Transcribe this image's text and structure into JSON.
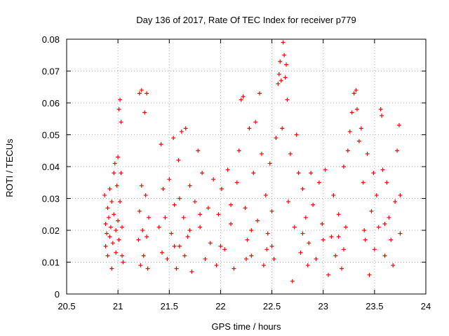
{
  "chart_data": {
    "type": "scatter",
    "title": "Day 136 of 2017, Rate Of TEC Index for receiver p779",
    "xlabel": "GPS time / hours",
    "ylabel": "ROTI / TECUs",
    "xlim": [
      20.5,
      24
    ],
    "ylim": [
      0,
      0.08
    ],
    "xticks": [
      "20.5",
      "21",
      "21.5",
      "22",
      "22.5",
      "23",
      "23.5",
      "24"
    ],
    "yticks": [
      "0",
      "0.01",
      "0.02",
      "0.03",
      "0.04",
      "0.05",
      "0.06",
      "0.07",
      "0.08"
    ],
    "grid": true,
    "marker": "+",
    "series": [
      {
        "name": "ROTI",
        "color": "#ff0000",
        "points": [
          [
            20.87,
            0.031
          ],
          [
            20.88,
            0.022
          ],
          [
            20.88,
            0.015
          ],
          [
            20.89,
            0.019
          ],
          [
            20.9,
            0.027
          ],
          [
            20.9,
            0.012
          ],
          [
            20.91,
            0.024
          ],
          [
            20.92,
            0.018
          ],
          [
            20.92,
            0.033
          ],
          [
            20.93,
            0.021
          ],
          [
            20.94,
            0.029
          ],
          [
            20.94,
            0.008
          ],
          [
            20.95,
            0.016
          ],
          [
            20.96,
            0.038
          ],
          [
            20.96,
            0.025
          ],
          [
            20.97,
            0.041
          ],
          [
            20.98,
            0.02
          ],
          [
            20.98,
            0.013
          ],
          [
            20.99,
            0.034
          ],
          [
            21.0,
            0.043
          ],
          [
            21.0,
            0.023
          ],
          [
            21.01,
            0.058
          ],
          [
            21.01,
            0.017
          ],
          [
            21.02,
            0.061
          ],
          [
            21.02,
            0.029
          ],
          [
            21.03,
            0.054
          ],
          [
            21.03,
            0.038
          ],
          [
            21.04,
            0.012
          ],
          [
            21.04,
            0.021
          ],
          [
            21.05,
            0.01
          ],
          [
            21.2,
            0.017
          ],
          [
            21.21,
            0.063
          ],
          [
            21.21,
            0.026
          ],
          [
            21.22,
            0.009
          ],
          [
            21.23,
            0.064
          ],
          [
            21.23,
            0.034
          ],
          [
            21.24,
            0.02
          ],
          [
            21.25,
            0.012
          ],
          [
            21.26,
            0.057
          ],
          [
            21.27,
            0.031
          ],
          [
            21.28,
            0.063
          ],
          [
            21.28,
            0.018
          ],
          [
            21.29,
            0.008
          ],
          [
            21.3,
            0.024
          ],
          [
            21.4,
            0.021
          ],
          [
            21.42,
            0.047
          ],
          [
            21.43,
            0.013
          ],
          [
            21.44,
            0.033
          ],
          [
            21.46,
            0.024
          ],
          [
            21.48,
            0.011
          ],
          [
            21.5,
            0.036
          ],
          [
            21.52,
            0.019
          ],
          [
            21.54,
            0.049
          ],
          [
            21.55,
            0.028
          ],
          [
            21.57,
            0.008
          ],
          [
            21.59,
            0.042
          ],
          [
            21.6,
            0.015
          ],
          [
            21.62,
            0.051
          ],
          [
            21.64,
            0.024
          ],
          [
            21.66,
            0.052
          ],
          [
            21.68,
            0.018
          ],
          [
            21.7,
            0.034
          ],
          [
            21.72,
            0.007
          ],
          [
            21.75,
            0.029
          ],
          [
            21.78,
            0.045
          ],
          [
            21.8,
            0.021
          ],
          [
            21.82,
            0.038
          ],
          [
            21.85,
            0.011
          ],
          [
            21.88,
            0.027
          ],
          [
            21.9,
            0.016
          ],
          [
            21.93,
            0.036
          ],
          [
            21.96,
            0.009
          ],
          [
            21.98,
            0.025
          ],
          [
            22.01,
            0.033
          ],
          [
            22.04,
            0.014
          ],
          [
            22.07,
            0.039
          ],
          [
            22.1,
            0.022
          ],
          [
            22.13,
            0.008
          ],
          [
            22.16,
            0.035
          ],
          [
            22.18,
            0.045
          ],
          [
            22.2,
            0.061
          ],
          [
            22.22,
            0.062
          ],
          [
            22.24,
            0.027
          ],
          [
            22.26,
            0.017
          ],
          [
            22.28,
            0.052
          ],
          [
            22.3,
            0.012
          ],
          [
            22.32,
            0.038
          ],
          [
            22.34,
            0.054
          ],
          [
            22.36,
            0.023
          ],
          [
            22.38,
            0.063
          ],
          [
            22.4,
            0.044
          ],
          [
            22.42,
            0.009
          ],
          [
            22.44,
            0.031
          ],
          [
            22.46,
            0.019
          ],
          [
            22.48,
            0.041
          ],
          [
            22.5,
            0.026
          ],
          [
            22.52,
            0.011
          ],
          [
            22.54,
            0.049
          ],
          [
            22.56,
            0.066
          ],
          [
            22.57,
            0.069
          ],
          [
            22.58,
            0.073
          ],
          [
            22.59,
            0.067
          ],
          [
            22.6,
            0.052
          ],
          [
            22.61,
            0.079
          ],
          [
            22.62,
            0.075
          ],
          [
            22.63,
            0.068
          ],
          [
            22.64,
            0.072
          ],
          [
            22.65,
            0.061
          ],
          [
            22.66,
            0.029
          ],
          [
            22.68,
            0.044
          ],
          [
            22.7,
            0.004
          ],
          [
            22.72,
            0.021
          ],
          [
            22.74,
            0.05
          ],
          [
            22.76,
            0.038
          ],
          [
            22.78,
            0.013
          ],
          [
            22.8,
            0.033
          ],
          [
            22.83,
            0.024
          ],
          [
            22.86,
            0.016
          ],
          [
            22.88,
            0.038
          ],
          [
            22.9,
            0.028
          ],
          [
            22.93,
            0.011
          ],
          [
            22.96,
            0.035
          ],
          [
            22.99,
            0.022
          ],
          [
            23.02,
            0.039
          ],
          [
            23.05,
            0.006
          ],
          [
            23.08,
            0.018
          ],
          [
            23.1,
            0.031
          ],
          [
            23.12,
            0.012
          ],
          [
            23.15,
            0.025
          ],
          [
            23.18,
            0.008
          ],
          [
            23.2,
            0.04
          ],
          [
            23.22,
            0.021
          ],
          [
            23.24,
            0.045
          ],
          [
            23.26,
            0.051
          ],
          [
            23.28,
            0.057
          ],
          [
            23.3,
            0.063
          ],
          [
            23.32,
            0.064
          ],
          [
            23.33,
            0.058
          ],
          [
            23.35,
            0.048
          ],
          [
            23.37,
            0.052
          ],
          [
            23.39,
            0.035
          ],
          [
            23.41,
            0.017
          ],
          [
            23.43,
            0.044
          ],
          [
            23.45,
            0.006
          ],
          [
            23.47,
            0.026
          ],
          [
            23.49,
            0.038
          ],
          [
            23.5,
            0.014
          ],
          [
            23.52,
            0.031
          ],
          [
            23.54,
            0.021
          ],
          [
            23.56,
            0.058
          ],
          [
            23.57,
            0.056
          ],
          [
            23.58,
            0.039
          ],
          [
            23.6,
            0.012
          ],
          [
            23.62,
            0.035
          ],
          [
            23.64,
            0.024
          ],
          [
            23.66,
            0.017
          ],
          [
            23.68,
            0.009
          ],
          [
            23.7,
            0.029
          ],
          [
            23.72,
            0.045
          ],
          [
            23.74,
            0.053
          ],
          [
            23.75,
            0.019
          ],
          [
            23.75,
            0.031
          ],
          [
            21.6,
            0.03
          ],
          [
            21.7,
            0.02
          ],
          [
            21.8,
            0.025
          ],
          [
            22.0,
            0.015
          ],
          [
            22.1,
            0.028
          ],
          [
            22.3,
            0.02
          ],
          [
            22.5,
            0.015
          ],
          [
            22.8,
            0.019
          ],
          [
            23.0,
            0.017
          ],
          [
            23.2,
            0.014
          ],
          [
            23.4,
            0.02
          ],
          [
            23.6,
            0.022
          ],
          [
            21.55,
            0.015
          ],
          [
            21.65,
            0.012
          ],
          [
            22.25,
            0.011
          ],
          [
            22.45,
            0.014
          ],
          [
            22.85,
            0.009
          ],
          [
            23.15,
            0.018
          ]
        ]
      }
    ]
  }
}
